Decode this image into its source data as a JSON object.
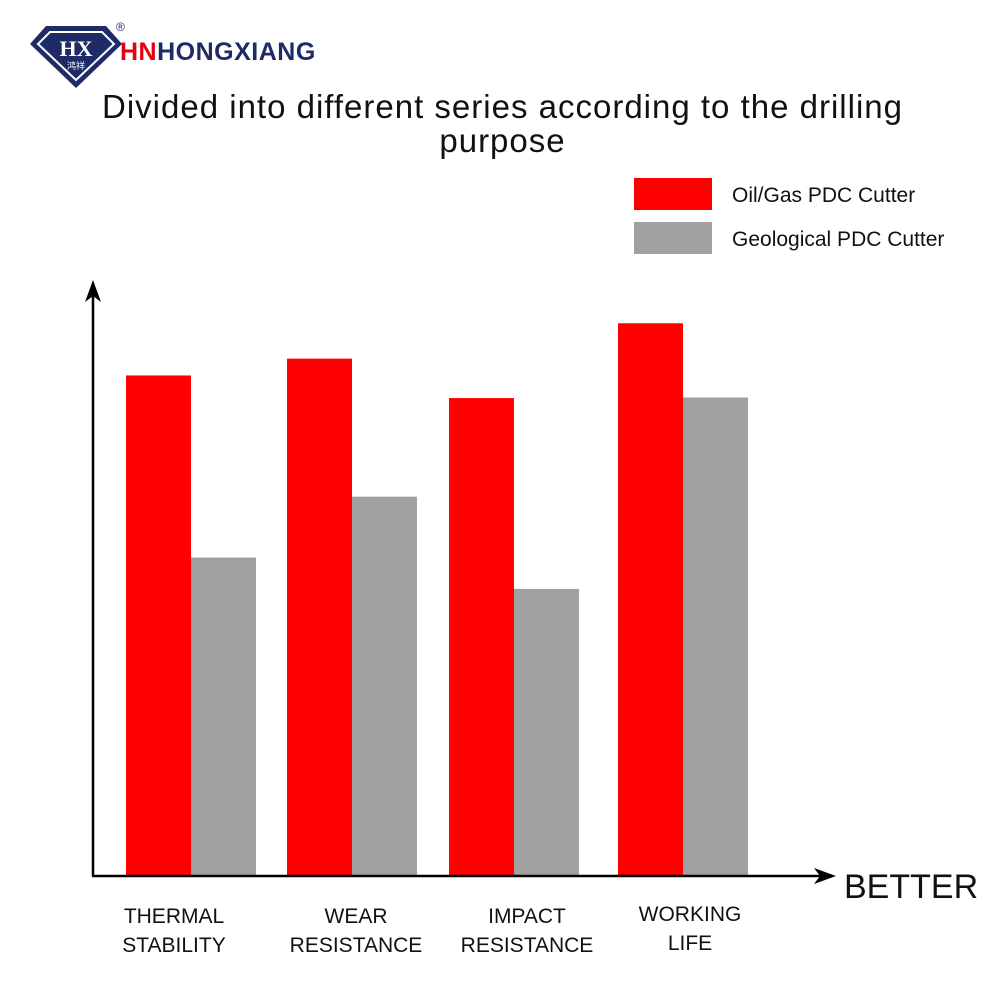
{
  "brand": {
    "registered_mark": "®",
    "logo_glyph": "HX",
    "logo_chinese": "鸿祥",
    "name_prefix": "HN",
    "name_rest": "HONGXIANG",
    "colors": {
      "red": "#e60012",
      "navy": "#1f2b66"
    }
  },
  "chart_data": {
    "type": "bar",
    "title": "Divided into different series according to the drilling purpose",
    "categories": [
      "THERMAL\nSTABILITY",
      "WEAR\nRESISTANCE",
      "IMPACT\nRESISTANCE",
      "WORKING\nLIFE"
    ],
    "series": [
      {
        "name": "Oil/Gas PDC Cutter",
        "color": "#ff0000",
        "values": [
          86.3,
          89.2,
          82.4,
          95.3
        ]
      },
      {
        "name": "Geological PDC Cutter",
        "color": "#a0a0a0",
        "values": [
          54.9,
          65.4,
          49.5,
          82.5
        ]
      }
    ],
    "xlabel": "BETTER",
    "ylabel": "",
    "ylim": [
      0,
      100
    ],
    "grid": false,
    "legend_position": "top-right"
  }
}
